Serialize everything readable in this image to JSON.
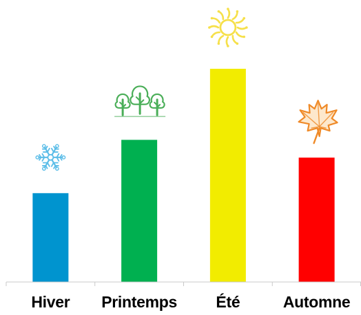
{
  "chart_data": {
    "type": "bar",
    "categories": [
      "Hiver",
      "Printemps",
      "Été",
      "Automne"
    ],
    "values": [
      1.0,
      1.6,
      2.4,
      1.4
    ],
    "ylim": [
      0,
      2.4
    ],
    "colors": [
      "#0094cf",
      "#00b050",
      "#f2ec00",
      "#ff0000"
    ],
    "icons": [
      "snowflake-icon",
      "trees-icon",
      "sun-icon",
      "maple-leaf-icon"
    ],
    "grid": false,
    "legend": "none"
  }
}
